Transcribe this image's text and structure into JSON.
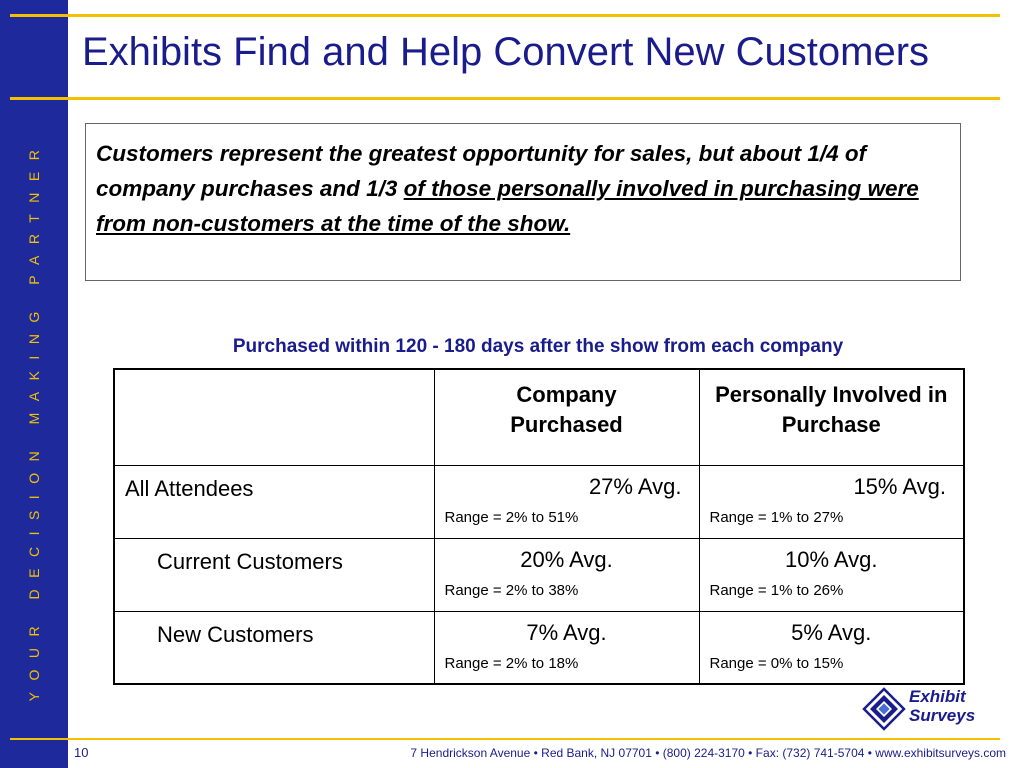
{
  "sidebar": {
    "tagline": "YOUR DECISION MAKING PARTNER"
  },
  "slide": {
    "title": "Exhibits Find and Help Convert New Customers"
  },
  "callout": {
    "text_plain": "Customers represent the greatest opportunity for sales, but about 1/4 of company purchases and 1/3 ",
    "text_underlined": "of those personally involved in purchasing were from non-customers at the time of the show."
  },
  "table": {
    "caption": "Purchased within 120 - 180 days after the show from each company",
    "headers": [
      "",
      "Company Purchased",
      "Personally Involved in Purchase"
    ],
    "rows": [
      {
        "label": "All Attendees",
        "company_avg": "27% Avg.",
        "company_range": "Range = 2% to 51%",
        "personal_avg": "15% Avg.",
        "personal_range": "Range = 1% to 27%"
      },
      {
        "label": "Current Customers",
        "company_avg": "20% Avg.",
        "company_range": "Range = 2% to 38%",
        "personal_avg": "10% Avg.",
        "personal_range": "Range = 1% to 26%"
      },
      {
        "label": "New Customers",
        "company_avg": "7% Avg.",
        "company_range": "Range = 2% to 18%",
        "personal_avg": "5% Avg.",
        "personal_range": "Range = 0% to 15%"
      }
    ]
  },
  "logo": {
    "line1": "Exhibit",
    "line2": "Surveys",
    "icon": "exhibit-surveys-logo-icon"
  },
  "footer": {
    "page_number": "10",
    "address": "7 Hendrickson Avenue   •   Red Bank, NJ 07701   •   (800) 224-3170   •   Fax: (732) 741-5704   •   www.exhibitsurveys.com"
  },
  "colors": {
    "sidebar": "#1e2a9c",
    "accent": "#f2c200",
    "title": "#1a1c8c"
  }
}
